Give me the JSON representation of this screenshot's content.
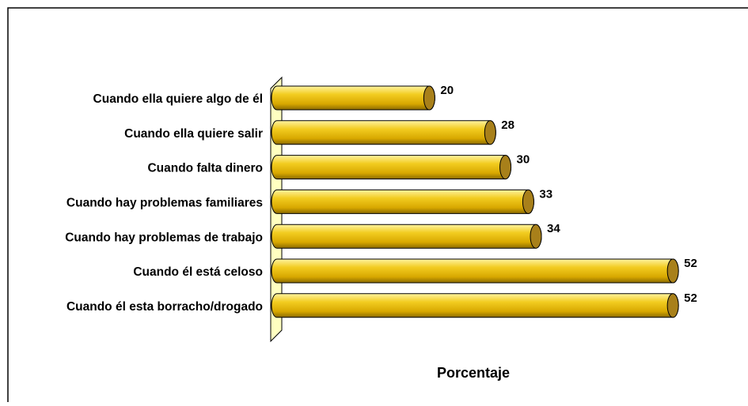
{
  "chart_data": {
    "type": "bar",
    "orientation": "horizontal",
    "categories": [
      "Cuando ella quiere algo de él",
      "Cuando ella quiere salir",
      "Cuando falta dinero",
      "Cuando hay problemas familiares",
      "Cuando hay problemas de trabajo",
      "Cuando él está celoso",
      "Cuando él esta borracho/drogado"
    ],
    "values": [
      20,
      28,
      30,
      33,
      34,
      52,
      52
    ],
    "color": "#e8b800",
    "xlabel": "Porcentaje",
    "xlim": [
      0,
      55
    ]
  }
}
